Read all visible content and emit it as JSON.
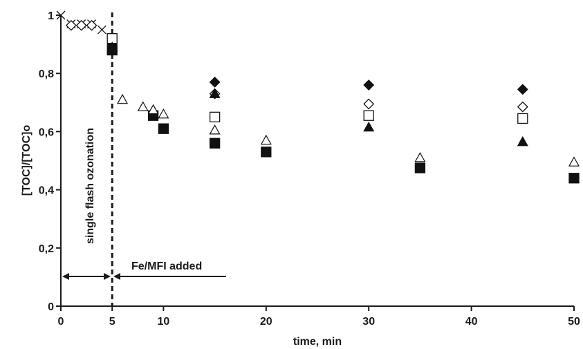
{
  "chart_data": {
    "type": "scatter",
    "xlabel": "time, min",
    "ylabel": "[TOC]/[TOC]o",
    "xlim": [
      0,
      50
    ],
    "ylim": [
      0,
      1
    ],
    "xticks": [
      0,
      5,
      10,
      20,
      30,
      40,
      50
    ],
    "xtick_labels": [
      "0",
      "5",
      "10",
      "20",
      "30",
      "40",
      "50"
    ],
    "yticks": [
      0,
      0.2,
      0.4,
      0.6,
      0.8,
      1
    ],
    "ytick_labels": [
      "0",
      "0,2",
      "0,4",
      "0,6",
      "0,8",
      "1"
    ],
    "grid": false,
    "series": [
      {
        "marker": "cross",
        "x": [
          0,
          1,
          2,
          3,
          4,
          5
        ],
        "y": [
          1.0,
          0.97,
          0.97,
          0.97,
          0.95,
          0.92
        ]
      },
      {
        "marker": "diamond-open",
        "x": [
          1,
          2,
          3,
          15,
          30,
          45
        ],
        "y": [
          0.965,
          0.965,
          0.965,
          0.73,
          0.695,
          0.685
        ]
      },
      {
        "marker": "diamond-filled",
        "x": [
          5,
          15,
          30,
          45
        ],
        "y": [
          0.9,
          0.77,
          0.76,
          0.745
        ]
      },
      {
        "marker": "square-open",
        "x": [
          5,
          15,
          30,
          45
        ],
        "y": [
          0.92,
          0.65,
          0.655,
          0.645
        ]
      },
      {
        "marker": "square-filled",
        "x": [
          5,
          9,
          10,
          15,
          20,
          35,
          50
        ],
        "y": [
          0.88,
          0.655,
          0.61,
          0.56,
          0.53,
          0.475,
          0.44
        ]
      },
      {
        "marker": "triangle-open",
        "x": [
          6,
          8,
          9,
          10,
          15,
          20,
          35,
          50
        ],
        "y": [
          0.71,
          0.685,
          0.675,
          0.66,
          0.605,
          0.57,
          0.51,
          0.495
        ]
      },
      {
        "marker": "triangle-filled",
        "x": [
          5,
          15,
          30,
          45
        ],
        "y": [
          0.89,
          0.73,
          0.615,
          0.565
        ]
      }
    ],
    "annotations": {
      "vline_x": 5,
      "vertical_text": "single flash ozonation",
      "horizontal_text": "Fe/MFI added"
    }
  }
}
